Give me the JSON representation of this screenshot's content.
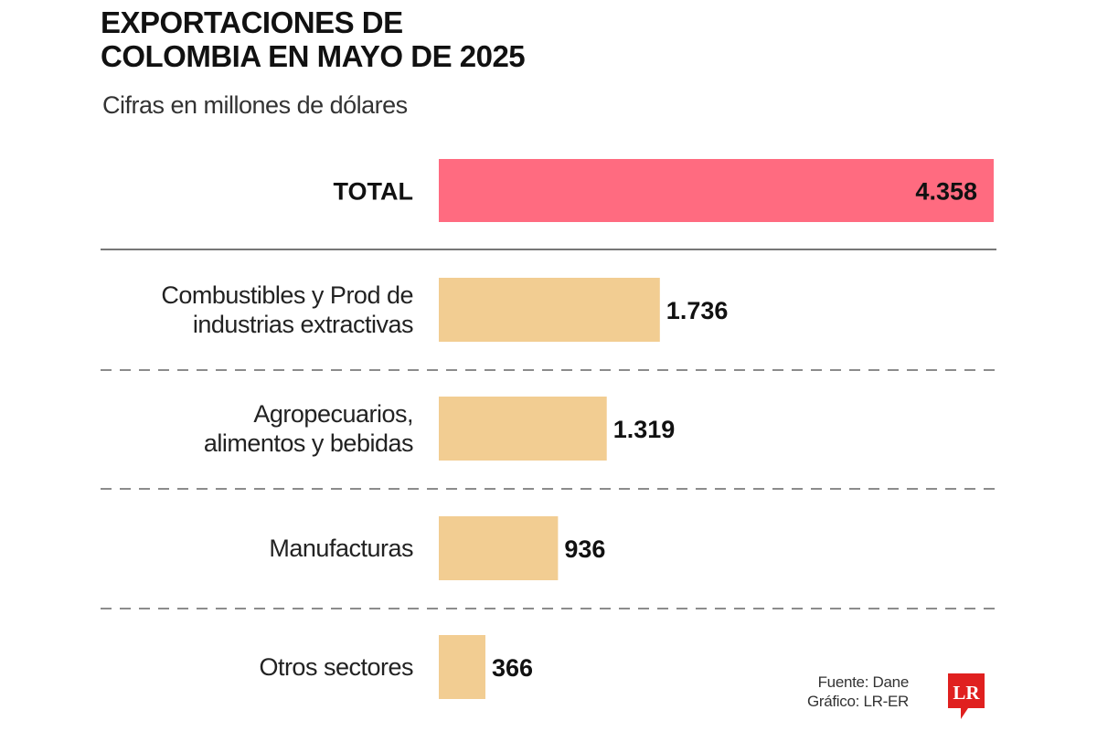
{
  "header": {
    "title_line1": "EXPORTACIONES DE",
    "title_line2": "COLOMBIA EN MAYO DE 2025",
    "subtitle": "Cifras en millones de dólares"
  },
  "footer": {
    "source": "Fuente: Dane",
    "credit": "Gráfico: LR-ER",
    "logo_text": "LR"
  },
  "colors": {
    "total_bar": "#FF6B80",
    "category_bar": "#F2CD92",
    "logo": "#E0201F"
  },
  "chart_data": {
    "type": "bar",
    "orientation": "horizontal",
    "title": "EXPORTACIONES DE COLOMBIA EN MAYO DE 2025",
    "subtitle": "Cifras en millones de dólares",
    "xlabel": "",
    "ylabel": "",
    "xlim": [
      0,
      4358
    ],
    "grid": false,
    "total": {
      "label": "TOTAL",
      "value": 4358,
      "display": "4.358"
    },
    "categories": [
      [
        "Combustibles y Prod de",
        "industrias extractivas"
      ],
      [
        "Agropecuarios,",
        "alimentos y bebidas"
      ],
      [
        "Manufacturas"
      ],
      [
        "Otros sectores"
      ]
    ],
    "values": [
      1736,
      1319,
      936,
      366
    ],
    "display_values": [
      "1.736",
      "1.319",
      "936",
      "366"
    ]
  }
}
